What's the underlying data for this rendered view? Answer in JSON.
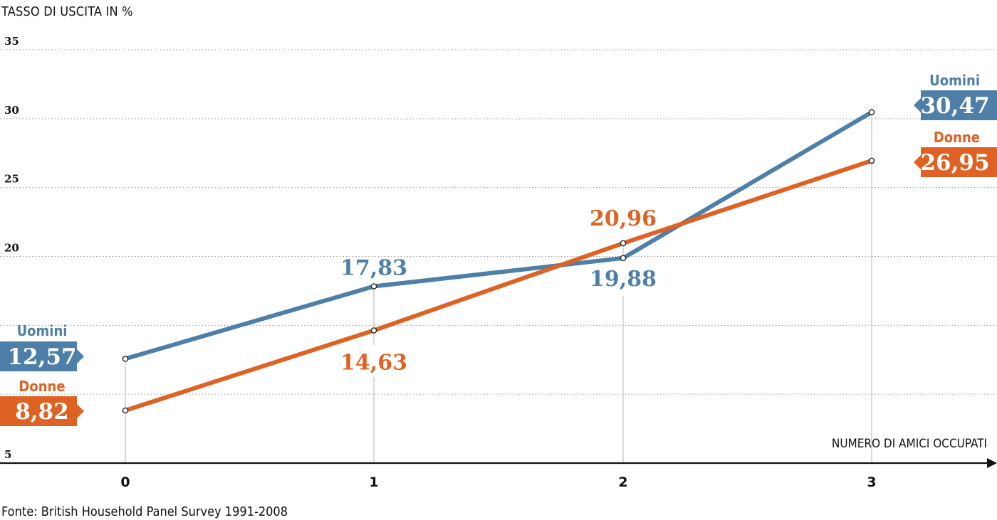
{
  "chart_data": {
    "type": "line",
    "ylabel": "TASSO DI USCITA IN %",
    "xlabel": "NUMERO DI AMICI OCCUPATI",
    "source": "Fonte: British Household Panel Survey 1991-2008",
    "categories": [
      "0",
      "1",
      "2",
      "3"
    ],
    "ylim": [
      5,
      35
    ],
    "yticks": [
      "35",
      "30",
      "25",
      "20",
      "5"
    ],
    "grid": true,
    "series": [
      {
        "name": "Uomini",
        "color": "#4e7fa8",
        "values": [
          12.57,
          17.83,
          19.88,
          30.47
        ],
        "labels": [
          "12,57",
          "17,83",
          "19,88",
          "30,47"
        ]
      },
      {
        "name": "Donne",
        "color": "#de6223",
        "values": [
          8.82,
          14.63,
          20.96,
          26.95
        ],
        "labels": [
          "8,82",
          "14,63",
          "20,96",
          "26,95"
        ]
      }
    ]
  }
}
